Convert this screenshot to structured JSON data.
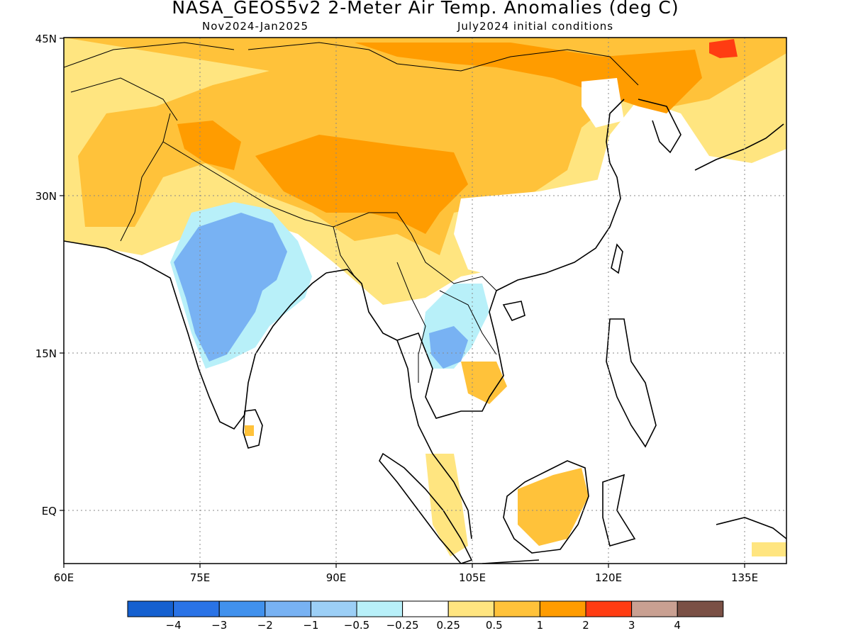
{
  "title": "NASA_GEOS5v2 2-Meter Air Temp. Anomalies (deg C)",
  "subtitle_left": "Nov2024-Jan2025",
  "subtitle_right": "July2024 initial conditions",
  "map": {
    "lon_range": [
      60,
      140
    ],
    "lat_range": [
      -5.5,
      45
    ],
    "x_ticks": [
      "60E",
      "75E",
      "90E",
      "105E",
      "120E",
      "135E"
    ],
    "y_ticks": [
      "45N",
      "30N",
      "15N",
      "EQ"
    ],
    "gridlines": "dotted"
  },
  "colorbar": {
    "tick_labels": [
      "-4",
      "-3",
      "-2",
      "-1",
      "-0.5",
      "-0.25",
      "0.25",
      "0.5",
      "1",
      "2",
      "3",
      "4"
    ],
    "colors": [
      "#1560d0",
      "#2a73e6",
      "#4191ed",
      "#78b2f3",
      "#9ccff6",
      "#b8f0f9",
      "#ffffff",
      "#ffe580",
      "#ffc23a",
      "#ff9c00",
      "#ff3c12",
      "#c9a092",
      "#7a5045"
    ]
  },
  "regions": [
    {
      "name": "central-india-cold",
      "anomaly": "-1 to -2"
    },
    {
      "name": "tibetan-plateau-warm",
      "anomaly": "1 to 2"
    },
    {
      "name": "mongolia-northeast-china-warm",
      "anomaly": "1 to 2"
    },
    {
      "name": "korea-northeast-warm",
      "anomaly": "2 to 3"
    },
    {
      "name": "thailand-cold",
      "anomaly": "-1 to -2"
    }
  ]
}
